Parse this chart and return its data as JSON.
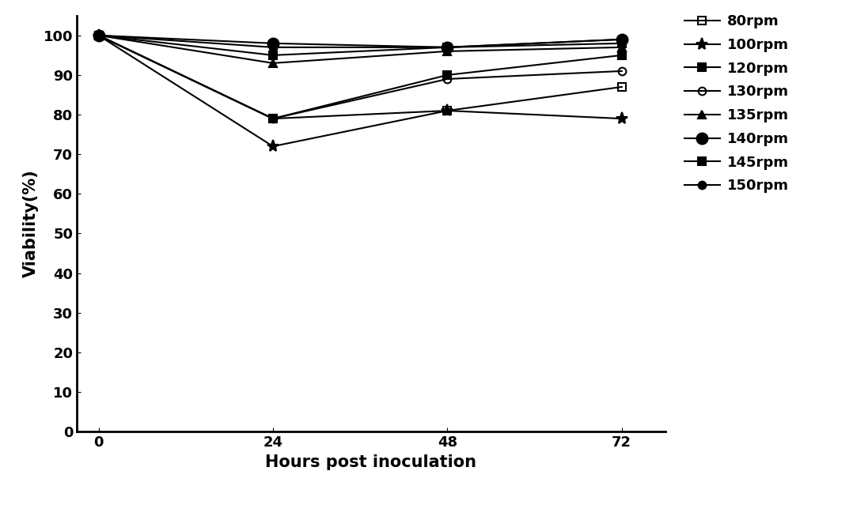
{
  "x": [
    0,
    24,
    48,
    72
  ],
  "series": [
    {
      "label": "80rpm",
      "values": [
        100,
        79,
        81,
        87
      ],
      "marker": "s",
      "fillstyle": "none",
      "markersize": 7
    },
    {
      "label": "100rpm",
      "values": [
        100,
        72,
        81,
        79
      ],
      "marker": "*",
      "fillstyle": "full",
      "markersize": 11
    },
    {
      "label": "120rpm",
      "values": [
        100,
        79,
        90,
        95
      ],
      "marker": "s",
      "fillstyle": "full",
      "markersize": 7
    },
    {
      "label": "130rpm",
      "values": [
        100,
        79,
        89,
        91
      ],
      "marker": "o",
      "fillstyle": "none",
      "markersize": 7
    },
    {
      "label": "135rpm",
      "values": [
        100,
        93,
        96,
        97
      ],
      "marker": "^",
      "fillstyle": "full",
      "markersize": 7
    },
    {
      "label": "140rpm",
      "values": [
        100,
        98,
        97,
        99
      ],
      "marker": "o",
      "fillstyle": "full",
      "markersize": 10
    },
    {
      "label": "145rpm",
      "values": [
        100,
        95,
        97,
        98
      ],
      "marker": "s",
      "fillstyle": "full",
      "markersize": 7
    },
    {
      "label": "150rpm",
      "values": [
        100,
        97,
        97,
        99
      ],
      "marker": "o",
      "fillstyle": "full",
      "markersize": 7
    }
  ],
  "xlabel": "Hours post inoculation",
  "ylabel": "Viability(%)",
  "ylim": [
    0,
    105
  ],
  "yticks": [
    0,
    10,
    20,
    30,
    40,
    50,
    60,
    70,
    80,
    90,
    100
  ],
  "xticks": [
    0,
    24,
    48,
    72
  ],
  "line_color": "black",
  "background_color": "#ffffff",
  "axis_fontsize": 15,
  "tick_fontsize": 13,
  "legend_fontsize": 13
}
